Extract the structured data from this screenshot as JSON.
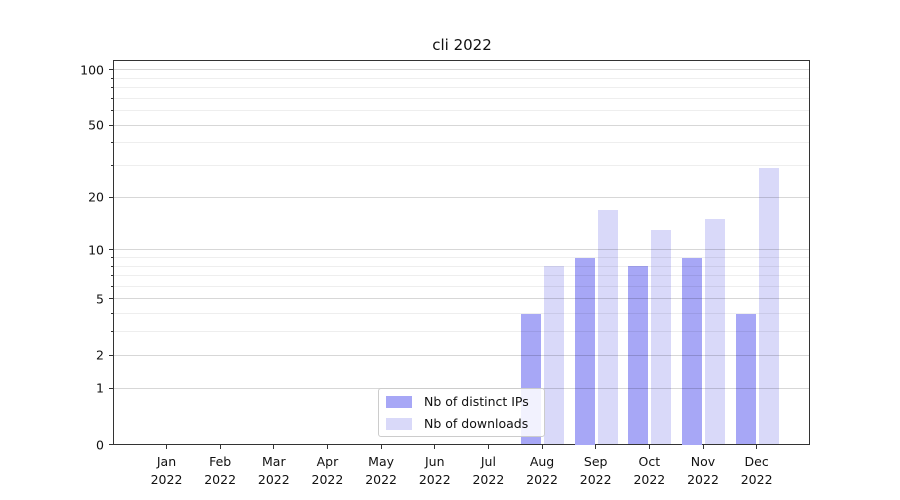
{
  "chart_data": {
    "type": "bar",
    "title": "cli 2022",
    "categories": [
      "Jan",
      "Feb",
      "Mar",
      "Apr",
      "May",
      "Jun",
      "Jul",
      "Aug",
      "Sep",
      "Oct",
      "Nov",
      "Dec"
    ],
    "year_label": "2022",
    "series": [
      {
        "name": "Nb of distinct IPs",
        "color": "#a7a7f6",
        "values": [
          0,
          0,
          0,
          0,
          0,
          0,
          0,
          4,
          9,
          8,
          9,
          4
        ]
      },
      {
        "name": "Nb of downloads",
        "color": "#d9d9f9",
        "values": [
          0,
          0,
          0,
          0,
          0,
          0,
          0,
          8,
          17,
          13,
          15,
          29
        ]
      }
    ],
    "y_axis": {
      "scale": "log1p",
      "major_ticks": [
        0,
        1,
        2,
        5,
        10,
        20,
        50,
        100
      ],
      "major_tick_labels": [
        "0",
        "1",
        "2",
        "5",
        "10",
        "20",
        "50",
        "100"
      ],
      "minor_ticks": [
        3,
        4,
        6,
        7,
        8,
        9,
        30,
        40,
        60,
        70,
        80,
        90
      ],
      "range": [
        0,
        113
      ]
    },
    "legend": {
      "position": "lower center"
    },
    "grid": {
      "horizontal": true,
      "vertical": false
    }
  },
  "colors": {
    "background": "#ffffff",
    "spine": "#333333",
    "text": "#111111",
    "grid_major": "#d8d8d8",
    "grid_minor": "#ededed",
    "bar_distinct_ips": "#a7a7f6",
    "bar_downloads": "#d9d9f9"
  }
}
